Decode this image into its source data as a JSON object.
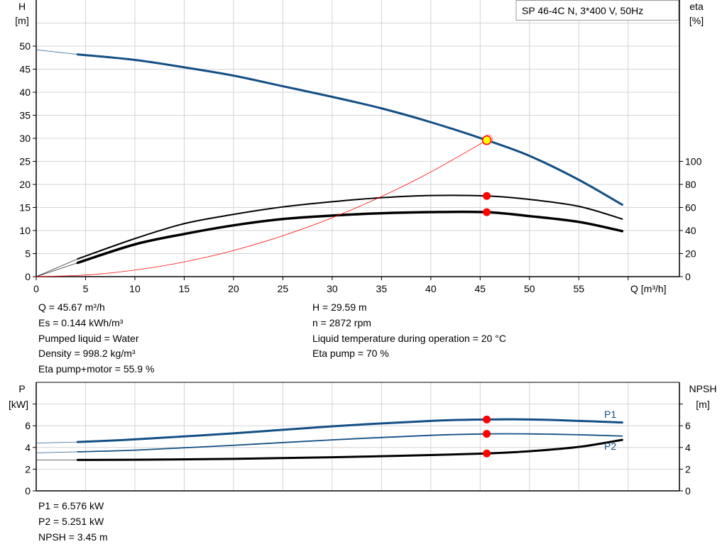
{
  "chart_data": [
    {
      "type": "line",
      "title": "SP 46-4C N, 3*400 V, 50Hz",
      "xlabel": "Q [m³/h]",
      "ylabel": "H [m]",
      "ylabel_line1": "H",
      "ylabel_line2": "[m]",
      "y2label_line1": "eta",
      "y2label_line2": "[%]",
      "xlim": [
        0,
        65.2
      ],
      "ylim": [
        0,
        60
      ],
      "y2lim": [
        0,
        240
      ],
      "grid": true,
      "x_ticks": [
        0,
        5,
        10,
        15,
        20,
        25,
        30,
        35,
        40,
        45,
        50,
        55
      ],
      "x_grid": [
        5,
        10,
        15,
        20,
        25,
        30,
        35,
        40,
        45,
        50,
        55,
        60
      ],
      "y_ticks": [
        0,
        5,
        10,
        15,
        20,
        25,
        30,
        35,
        40,
        45,
        50
      ],
      "y_grid": [
        5,
        10,
        15,
        20,
        25,
        30,
        35,
        40,
        45,
        50,
        55
      ],
      "y2_ticks": [
        0,
        20,
        40,
        60,
        80,
        100
      ],
      "colors": {
        "head": "#134f84",
        "eta": "#000000",
        "system": "#ff0000",
        "point": "#ff0000",
        "duty_fill": "#ffff00"
      },
      "series": [
        {
          "id": "H",
          "axis": "left",
          "color": "#134f84",
          "width": 3,
          "extrapolated": [
            [
              0,
              49.2
            ],
            [
              4.2,
              48.2
            ]
          ],
          "points": [
            [
              4.2,
              48.2
            ],
            [
              10,
              47.0
            ],
            [
              15,
              45.4
            ],
            [
              20,
              43.6
            ],
            [
              25,
              41.3
            ],
            [
              30,
              39.0
            ],
            [
              35,
              36.5
            ],
            [
              40,
              33.5
            ],
            [
              45.67,
              29.59
            ],
            [
              50,
              26.2
            ],
            [
              55,
              21.0
            ],
            [
              59.4,
              15.6
            ]
          ]
        },
        {
          "id": "eta_pump",
          "axis": "right",
          "color": "#000000",
          "width": 2,
          "extrapolated": [
            [
              0,
              0
            ],
            [
              4.2,
              15.4
            ]
          ],
          "points": [
            [
              4.2,
              15.4
            ],
            [
              10,
              33
            ],
            [
              15,
              46
            ],
            [
              20,
              54
            ],
            [
              25,
              60.5
            ],
            [
              30,
              65
            ],
            [
              35,
              68.5
            ],
            [
              40,
              70.4
            ],
            [
              45.67,
              70
            ],
            [
              50,
              67
            ],
            [
              55,
              61
            ],
            [
              59.4,
              50
            ]
          ]
        },
        {
          "id": "eta_pump_motor",
          "axis": "right",
          "color": "#000000",
          "width": 3.5,
          "extrapolated": [
            [
              0,
              0
            ],
            [
              4.2,
              12
            ]
          ],
          "points": [
            [
              4.2,
              12
            ],
            [
              10,
              28
            ],
            [
              15,
              37
            ],
            [
              20,
              44.5
            ],
            [
              25,
              50
            ],
            [
              30,
              53
            ],
            [
              35,
              55
            ],
            [
              40,
              56
            ],
            [
              45.67,
              55.9
            ],
            [
              50,
              52.5
            ],
            [
              55,
              47.5
            ],
            [
              59.4,
              39.5
            ]
          ]
        },
        {
          "id": "system_curve",
          "axis": "left",
          "color": "#ff0000",
          "width": 0.8,
          "points": [
            [
              0,
              0
            ],
            [
              5,
              0.35
            ],
            [
              10,
              1.42
            ],
            [
              15,
              3.19
            ],
            [
              20,
              5.67
            ],
            [
              25,
              8.87
            ],
            [
              30,
              12.77
            ],
            [
              35,
              17.38
            ],
            [
              40,
              22.7
            ],
            [
              45.67,
              29.59
            ]
          ]
        }
      ],
      "duty_point": {
        "Q": 45.67,
        "H": 29.59,
        "eta_pump": 70,
        "eta_pump_motor": 55.9
      }
    },
    {
      "type": "line",
      "ylabel_line1": "P",
      "ylabel_line2": "[kW]",
      "y2label_line1": "NPSH",
      "y2label_line2": "[m]",
      "xlim": [
        0,
        65.2
      ],
      "ylim": [
        0,
        10
      ],
      "y2lim": [
        0,
        10
      ],
      "grid": true,
      "y_ticks": [
        0,
        2,
        4,
        6,
        8
      ],
      "y_tick_labels": [
        "0",
        "2",
        "4",
        "6",
        ""
      ],
      "y_grid": [
        2,
        4,
        6,
        8
      ],
      "series": [
        {
          "id": "P1",
          "name": "P1",
          "axis": "left",
          "color": "#134f84",
          "width": 3,
          "extrapolated": [
            [
              0,
              4.4
            ],
            [
              4.2,
              4.5
            ]
          ],
          "points": [
            [
              4.2,
              4.5
            ],
            [
              10,
              4.75
            ],
            [
              20,
              5.3
            ],
            [
              30,
              5.95
            ],
            [
              40,
              6.45
            ],
            [
              45.67,
              6.576
            ],
            [
              50,
              6.58
            ],
            [
              55,
              6.45
            ],
            [
              59.4,
              6.3
            ]
          ]
        },
        {
          "id": "P2",
          "name": "P2",
          "axis": "left",
          "color": "#134f84",
          "width": 1.8,
          "extrapolated": [
            [
              0,
              3.5
            ],
            [
              4.2,
              3.6
            ]
          ],
          "points": [
            [
              4.2,
              3.6
            ],
            [
              10,
              3.75
            ],
            [
              20,
              4.2
            ],
            [
              30,
              4.7
            ],
            [
              40,
              5.12
            ],
            [
              45.67,
              5.251
            ],
            [
              50,
              5.25
            ],
            [
              55,
              5.17
            ],
            [
              59.4,
              5.05
            ]
          ]
        },
        {
          "id": "NPSH",
          "axis": "right",
          "color": "#000000",
          "width": 3,
          "extrapolated": [
            [
              0,
              2.85
            ],
            [
              4.2,
              2.85
            ]
          ],
          "points": [
            [
              4.2,
              2.85
            ],
            [
              10,
              2.87
            ],
            [
              20,
              2.95
            ],
            [
              30,
              3.1
            ],
            [
              40,
              3.3
            ],
            [
              45.67,
              3.45
            ],
            [
              50,
              3.65
            ],
            [
              55,
              4.05
            ],
            [
              59.4,
              4.7
            ]
          ]
        }
      ],
      "duty_point": {
        "Q": 45.67,
        "P1": 6.576,
        "P2": 5.251,
        "NPSH": 3.45
      }
    }
  ],
  "info_left": [
    "Q = 45.67 m³/h",
    "Es = 0.144 kWh/m³",
    "Pumped liquid = Water",
    "Density = 998.2 kg/m³",
    "Eta pump+motor = 55.9 %"
  ],
  "info_right": [
    "H = 29.59 m",
    "n = 2872 rpm",
    "Liquid temperature during operation = 20 °C",
    "Eta pump = 70 %"
  ],
  "info_bottom": [
    "P1 = 6.576 kW",
    "P2 = 5.251 kW",
    "NPSH = 3.45 m"
  ]
}
